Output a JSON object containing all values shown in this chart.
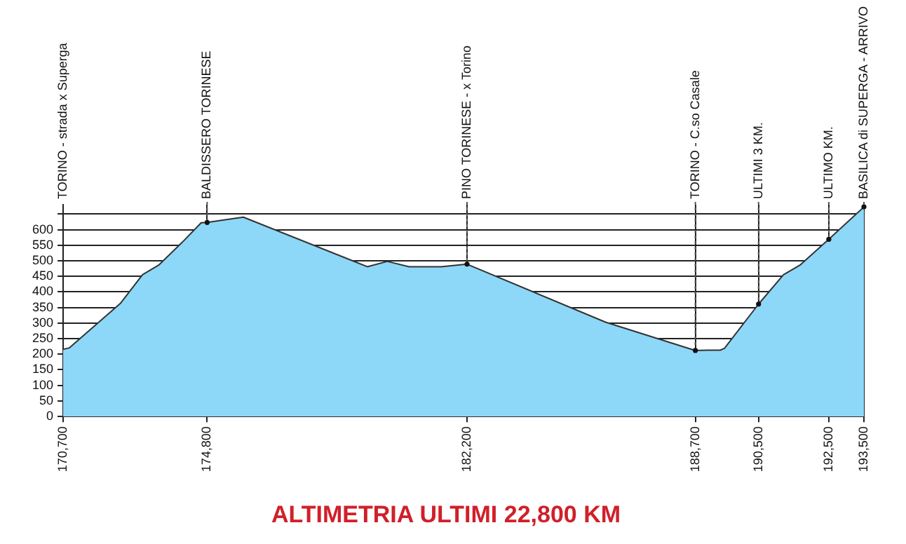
{
  "chart_data": {
    "type": "area",
    "title": "ALTIMETRIA ULTIMI 22,800 KM",
    "x": [
      170700,
      170870,
      172330,
      172960,
      173420,
      174150,
      174630,
      174800,
      175830,
      179360,
      179930,
      180550,
      181470,
      182200,
      186140,
      188700,
      189050,
      189110,
      189360,
      189410,
      189530,
      190500,
      191210,
      191680,
      192500,
      193500
    ],
    "series": [
      {
        "color": "#8dd8f8",
        "values": [
          216,
          220,
          363,
          455,
          486,
          566,
          622,
          623,
          640,
          481,
          498,
          481,
          481,
          489,
          303,
          212,
          213,
          213,
          213,
          213,
          219,
          361,
          455,
          486,
          569,
          673
        ]
      }
    ],
    "xlim": [
      170700,
      193500
    ],
    "xticks": [
      {
        "value": 170700,
        "label": "170,700"
      },
      {
        "value": 174800,
        "label": "174,800"
      },
      {
        "value": 182200,
        "label": "182,200"
      },
      {
        "value": 188700,
        "label": "188,700"
      },
      {
        "value": 190500,
        "label": "190,500"
      },
      {
        "value": 192500,
        "label": "192,500"
      },
      {
        "value": 193500,
        "label": "193,500"
      }
    ],
    "annotations": [
      "TORINO - strada x Superga",
      {
        "text": "BALDISSERO TORINESE",
        "x": 174800,
        "y": 623
      },
      {
        "text": "PINO TORINESE - x Torino",
        "x": 182200,
        "y": 489
      },
      {
        "text": "TORINO - C.so Casale",
        "x": 188700,
        "y": 212
      },
      {
        "text": "ULTIMI 3 KM.",
        "x": 190500,
        "y": 361
      },
      {
        "text": "ULTIMO KM.",
        "x": 192500,
        "y": 569
      },
      {
        "text": "BASILICA di SUPERGA - ARRIVO",
        "x": 193500,
        "y": 673
      }
    ],
    "ylim": [
      0,
      680
    ],
    "yticks": [
      0,
      50,
      100,
      150,
      200,
      250,
      300,
      350,
      400,
      450,
      500,
      550,
      600,
      {
        "value": 650,
        "label": null
      }
    ],
    "grid": true
  }
}
